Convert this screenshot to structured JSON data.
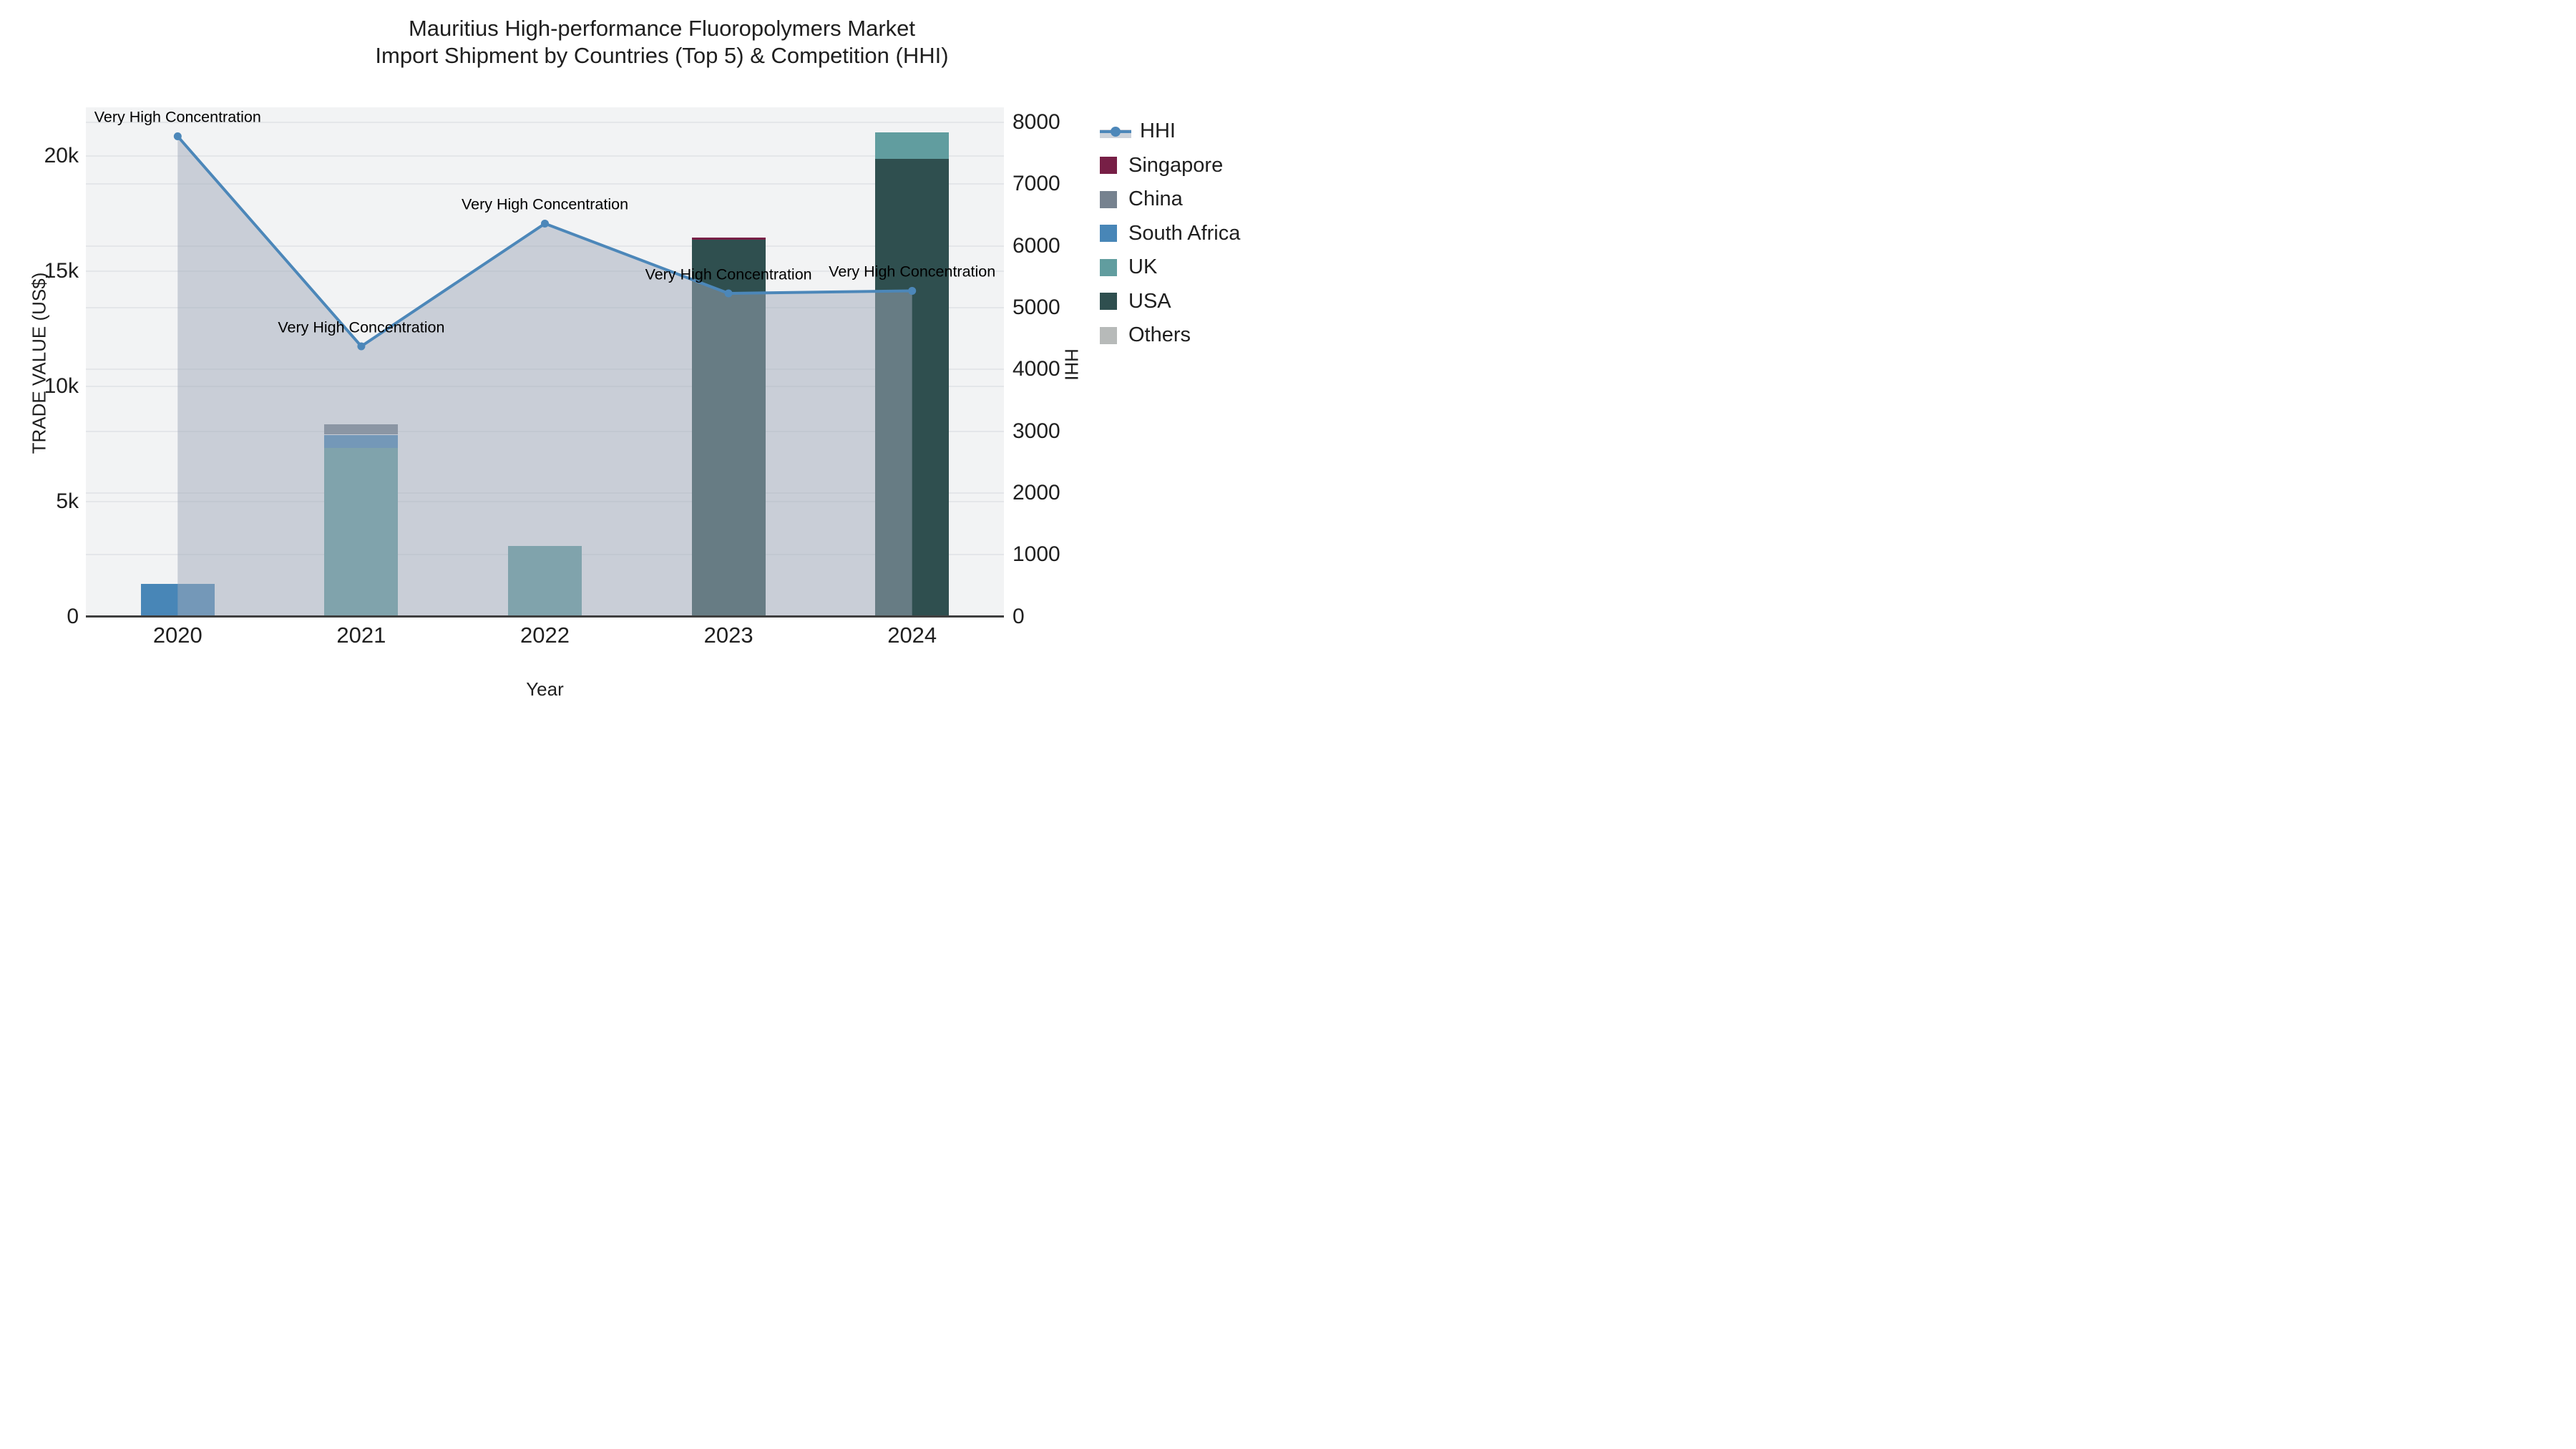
{
  "title": {
    "line1": "Mauritius High-performance Fluoropolymers Market",
    "line2": "Import Shipment by Countries (Top 5) & Competition (HHI)"
  },
  "axes": {
    "x": {
      "title": "Year",
      "categories": [
        "2020",
        "2021",
        "2022",
        "2023",
        "2024"
      ]
    },
    "y_left": {
      "title": "TRADE VALUE (US$)",
      "tick_labels": [
        "0",
        "5k",
        "10k",
        "15k",
        "20k"
      ],
      "tick_values": [
        0,
        5000,
        10000,
        15000,
        20000
      ],
      "range": [
        0,
        22130
      ],
      "grid_step": 5000
    },
    "y_right": {
      "title": "HHI",
      "tick_labels": [
        "0",
        "1000",
        "2000",
        "3000",
        "4000",
        "5000",
        "6000",
        "7000",
        "8000"
      ],
      "tick_values": [
        0,
        1000,
        2000,
        3000,
        4000,
        5000,
        6000,
        7000,
        8000
      ],
      "range": [
        0,
        8243
      ],
      "grid_step": 1000
    }
  },
  "chart_data": {
    "type": "bar",
    "subtype": "stacked bars + line on secondary axis with area fill",
    "categories": [
      "2020",
      "2021",
      "2022",
      "2023",
      "2024"
    ],
    "series": [
      {
        "name": "Singapore",
        "type": "bar",
        "axis": "left",
        "color": "#771f46",
        "values": [
          0,
          0,
          0,
          90,
          0
        ]
      },
      {
        "name": "China",
        "type": "bar",
        "axis": "left",
        "color": "#76828f",
        "values": [
          0,
          450,
          0,
          0,
          0
        ]
      },
      {
        "name": "South Africa",
        "type": "bar",
        "axis": "left",
        "color": "#4886b7",
        "values": [
          1400,
          590,
          0,
          0,
          0
        ]
      },
      {
        "name": "UK",
        "type": "bar",
        "axis": "left",
        "color": "#619d9f",
        "values": [
          0,
          7310,
          3050,
          0,
          1130
        ]
      },
      {
        "name": "USA",
        "type": "bar",
        "axis": "left",
        "color": "#2f4f4f",
        "values": [
          0,
          0,
          0,
          16370,
          19900
        ]
      },
      {
        "name": "Others",
        "type": "bar",
        "axis": "left",
        "color": "#b7bab9",
        "values": [
          0,
          0,
          0,
          0,
          0
        ]
      },
      {
        "name": "HHI",
        "type": "line",
        "axis": "right",
        "color": "#4c87b9",
        "area_fill": "rgba(160,169,186,0.5)",
        "values": [
          7774,
          4374,
          6361,
          5231,
          5272
        ]
      }
    ],
    "stack_order_bottom_to_top": [
      "USA",
      "UK",
      "South Africa",
      "China",
      "Singapore",
      "Others"
    ],
    "annotations": [
      {
        "category": "2020",
        "text": "Very High Concentration"
      },
      {
        "category": "2021",
        "text": "Very High Concentration"
      },
      {
        "category": "2022",
        "text": "Very High Concentration"
      },
      {
        "category": "2023",
        "text": "Very High Concentration"
      },
      {
        "category": "2024",
        "text": "Very High Concentration"
      }
    ],
    "legend_position": "right",
    "grid": "faint gridlines for both axes"
  },
  "legend": {
    "items": [
      {
        "label": "HHI",
        "symbol": "line-marker"
      },
      {
        "label": "Singapore",
        "symbol": "square",
        "color": "#771f46"
      },
      {
        "label": "China",
        "symbol": "square",
        "color": "#76828f"
      },
      {
        "label": "South Africa",
        "symbol": "square",
        "color": "#4886b7"
      },
      {
        "label": "UK",
        "symbol": "square",
        "color": "#619d9f"
      },
      {
        "label": "USA",
        "symbol": "square",
        "color": "#2f4f4f"
      },
      {
        "label": "Others",
        "symbol": "square",
        "color": "#b7bab9"
      }
    ]
  },
  "colors": {
    "plot_background": "#f2f3f4",
    "page_background": "#ffffff",
    "gridline": "#e4e6e9",
    "axis_line": "#3f3f3f",
    "text": "#1f1f1f",
    "hhi_line": "#4c87b9",
    "hhi_area": "rgba(160,169,186,0.5)"
  }
}
